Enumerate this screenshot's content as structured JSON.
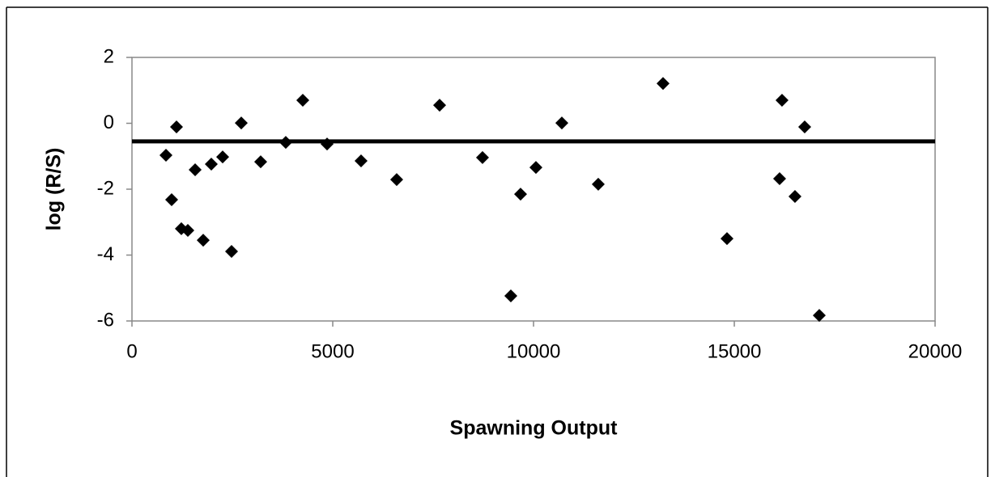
{
  "chart_data": {
    "type": "scatter",
    "x_label": "Spawning Output",
    "y_label": "log (R/S)",
    "x": [
      847,
      988,
      1109,
      1230,
      1391,
      1573,
      1774,
      1976,
      2258,
      2480,
      2722,
      3205,
      3830,
      4254,
      4859,
      5705,
      6592,
      7661,
      8729,
      9435,
      9677,
      10060,
      10705,
      11612,
      13225,
      14818,
      16128,
      16188,
      16511,
      16753,
      17116
    ],
    "values": [
      -0.97,
      -2.32,
      -0.11,
      -3.2,
      -3.25,
      -1.41,
      -3.55,
      -1.24,
      -1.02,
      -3.89,
      0.01,
      -1.17,
      -0.58,
      0.7,
      -0.63,
      -1.14,
      -1.71,
      0.55,
      -1.04,
      -5.24,
      -2.15,
      -1.34,
      0.01,
      -1.85,
      1.21,
      -3.5,
      -1.68,
      0.7,
      -2.22,
      -0.11,
      -5.83
    ],
    "color": "#000000",
    "hline": {
      "value": -0.55,
      "color": "#000000"
    },
    "xlim": [
      0,
      20000
    ],
    "xticks": [
      0,
      5000,
      10000,
      15000,
      20000
    ],
    "ylim": [
      -6,
      2
    ],
    "yticks": [
      -6,
      -4,
      -2,
      0,
      2
    ],
    "grid": false
  }
}
